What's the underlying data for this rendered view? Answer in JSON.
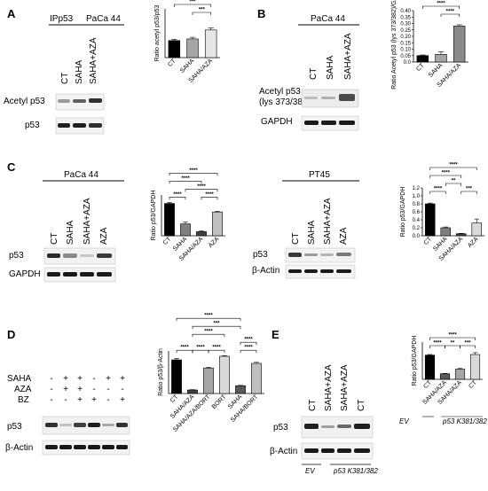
{
  "panels": {
    "A": {
      "label": "A",
      "header": [
        "IPp53",
        "PaCa 44"
      ],
      "lanes": [
        "CT",
        "SAHA",
        "SAHA+AZA"
      ],
      "rows": [
        "Acetyl p53",
        "p53"
      ],
      "chart_data": {
        "type": "bar",
        "ylabel": "Ratio acetyl p53/p53",
        "categories": [
          "CT",
          "SAHA",
          "SAHA/AZA"
        ],
        "values": [
          0.42,
          0.46,
          0.68
        ],
        "errors": [
          0.03,
          0.04,
          0.05
        ],
        "fills": [
          "#000000",
          "#a6a6a6",
          "#e6e6e6"
        ],
        "ylim": [
          0,
          1.2
        ],
        "show_ticks": false,
        "comparisons": [
          {
            "from": 0,
            "to": 2,
            "label": "***",
            "level": 2
          },
          {
            "from": 1,
            "to": 2,
            "label": "***",
            "level": 1
          }
        ]
      }
    },
    "B": {
      "label": "B",
      "header": [
        "PaCa 44"
      ],
      "lanes": [
        "CT",
        "SAHA",
        "SAHA+AZA"
      ],
      "rows": [
        "Acetyl p53",
        "(lys 373/382)",
        "GAPDH"
      ],
      "chart_data": {
        "type": "bar",
        "ylabel": "Ratio Acetyl p53 (lys 373/382)/GAPDH",
        "categories": [
          "CT",
          "SAHA",
          "SAHA/AZA"
        ],
        "values": [
          0.05,
          0.06,
          0.28
        ],
        "errors": [
          0.005,
          0.02,
          0.01
        ],
        "fills": [
          "#000000",
          "#a6a6a6",
          "#8a8a8a"
        ],
        "ylim": [
          0,
          0.4
        ],
        "yticks": [
          "0.0",
          "0.05",
          "0.10",
          "0.15",
          "0.20",
          "0.25",
          "0.30",
          "0.35",
          "0.40"
        ],
        "comparisons": [
          {
            "from": 0,
            "to": 2,
            "label": "****",
            "level": 2
          },
          {
            "from": 1,
            "to": 2,
            "label": "****",
            "level": 1
          }
        ]
      }
    },
    "C1": {
      "label": "C",
      "header": [
        "PaCa 44"
      ],
      "lanes": [
        "CT",
        "SAHA",
        "SAHA+AZA",
        "AZA"
      ],
      "rows": [
        "p53",
        "GAPDH"
      ],
      "chart_data": {
        "type": "bar",
        "ylabel": "Ratio p53/GAPDH",
        "categories": [
          "CT",
          "SAHA",
          "SAHA/AZA",
          "AZA"
        ],
        "values": [
          0.95,
          0.35,
          0.12,
          0.7
        ],
        "errors": [
          0.03,
          0.05,
          0.02,
          0.02
        ],
        "fills": [
          "#000000",
          "#7f7f7f",
          "#404040",
          "#bfbfbf"
        ],
        "ylim": [
          0,
          1.2
        ],
        "show_ticks": false,
        "comparisons": [
          {
            "from": 0,
            "to": 3,
            "label": "****",
            "level": 4
          },
          {
            "from": 0,
            "to": 2,
            "label": "****",
            "level": 3
          },
          {
            "from": 1,
            "to": 3,
            "label": "****",
            "level": 2
          },
          {
            "from": 0,
            "to": 1,
            "label": "****",
            "level": 1
          },
          {
            "from": 2,
            "to": 3,
            "label": "****",
            "level": 1
          }
        ]
      }
    },
    "C2": {
      "header": [
        "PT45"
      ],
      "lanes": [
        "CT",
        "SAHA",
        "SAHA+AZA",
        "AZA"
      ],
      "rows": [
        "p53",
        "β-Actin"
      ],
      "chart_data": {
        "type": "bar",
        "ylabel": "Ratio p53/GAPDH",
        "categories": [
          "CT",
          "SAHA",
          "SAHA/AZA",
          "AZA"
        ],
        "values": [
          0.8,
          0.2,
          0.05,
          0.32
        ],
        "errors": [
          0.02,
          0.02,
          0.01,
          0.1
        ],
        "fills": [
          "#000000",
          "#7f7f7f",
          "#404040",
          "#d9d9d9"
        ],
        "ylim": [
          0,
          1.2
        ],
        "yticks": [
          "0.0",
          "0.2",
          "0.4",
          "0.6",
          "0.8",
          "1.0",
          "1.2"
        ],
        "comparisons": [
          {
            "from": 0,
            "to": 3,
            "label": "****",
            "level": 4
          },
          {
            "from": 0,
            "to": 2,
            "label": "****",
            "level": 3
          },
          {
            "from": 1,
            "to": 2,
            "label": "**",
            "level": 2
          },
          {
            "from": 0,
            "to": 1,
            "label": "****",
            "level": 1
          },
          {
            "from": 2,
            "to": 3,
            "label": "***",
            "level": 1
          }
        ]
      }
    },
    "D": {
      "label": "D",
      "treatments": [
        {
          "name": "SAHA",
          "signs": [
            "-",
            "+",
            "+",
            "-",
            "+",
            "+"
          ]
        },
        {
          "name": "AZA",
          "signs": [
            "-",
            "+",
            "+",
            "-",
            "-",
            "-"
          ]
        },
        {
          "name": "BZ",
          "signs": [
            "-",
            "-",
            "+",
            "+",
            "-",
            "+"
          ]
        }
      ],
      "rows": [
        "p53",
        "β-Actin"
      ],
      "chart_data": {
        "type": "bar",
        "ylabel": "Ratio p53/β-Actin",
        "categories": [
          "CT",
          "SAHA/AZA",
          "SAHA/AZA/BORT",
          "BORT",
          "SAHA",
          "SAHA/BORT"
        ],
        "values": [
          0.95,
          0.1,
          0.72,
          1.05,
          0.22,
          0.85
        ],
        "errors": [
          0.04,
          0.01,
          0.02,
          0.02,
          0.01,
          0.03
        ],
        "fills": [
          "#000000",
          "#404040",
          "#a6a6a6",
          "#d9d9d9",
          "#595959",
          "#bfbfbf"
        ],
        "ylim": [
          0,
          1.2
        ],
        "show_ticks": false,
        "comparisons": [
          {
            "from": 0,
            "to": 4,
            "label": "****",
            "level": 5
          },
          {
            "from": 1,
            "to": 4,
            "label": "***",
            "level": 4
          },
          {
            "from": 1,
            "to": 3,
            "label": "****",
            "level": 3
          },
          {
            "from": 4,
            "to": 5,
            "label": "****",
            "level": 2
          },
          {
            "from": 0,
            "to": 1,
            "label": "****",
            "level": 1
          },
          {
            "from": 1,
            "to": 2,
            "label": "****",
            "level": 1
          },
          {
            "from": 2,
            "to": 3,
            "label": "****",
            "level": 1
          },
          {
            "from": 4,
            "to": 5,
            "label": "****",
            "level": 1
          }
        ]
      }
    },
    "E": {
      "label": "E",
      "lanes": [
        "CT",
        "SAHA+AZA",
        "SAHA+AZA",
        "CT"
      ],
      "rows": [
        "p53",
        "β-Actin"
      ],
      "groups": [
        "EV",
        "p53 K381/382"
      ],
      "chart_data": {
        "type": "bar",
        "ylabel": "Ratio p53/GAPDH",
        "categories": [
          "CT",
          "SAHA/AZA",
          "SAHA/AZA",
          "CT"
        ],
        "values": [
          0.78,
          0.18,
          0.33,
          0.8
        ],
        "errors": [
          0.02,
          0.01,
          0.02,
          0.06
        ],
        "fills": [
          "#000000",
          "#595959",
          "#a6a6a6",
          "#d9d9d9"
        ],
        "ylim": [
          0,
          1.2
        ],
        "show_ticks": false,
        "groups": [
          "EV",
          "p53 K381/382"
        ],
        "comparisons": [
          {
            "from": 0,
            "to": 3,
            "label": "****",
            "level": 2
          },
          {
            "from": 0,
            "to": 1,
            "label": "****",
            "level": 1
          },
          {
            "from": 1,
            "to": 2,
            "label": "**",
            "level": 1
          },
          {
            "from": 2,
            "to": 3,
            "label": "***",
            "level": 1
          }
        ]
      }
    }
  }
}
